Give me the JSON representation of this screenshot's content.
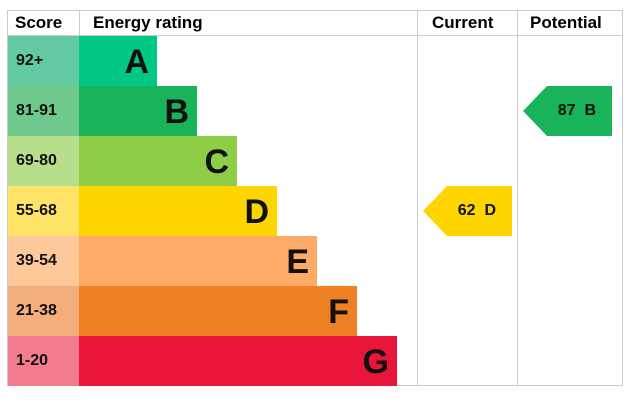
{
  "header": {
    "score": "Score",
    "energy_rating": "Energy rating",
    "current": "Current",
    "potential": "Potential"
  },
  "chart_data": {
    "type": "table",
    "bands": [
      {
        "score": "92+",
        "letter": "A",
        "color": "#00c781",
        "score_color": "#63c9a1"
      },
      {
        "score": "81-91",
        "letter": "B",
        "color": "#19b459",
        "score_color": "#6fc98d"
      },
      {
        "score": "69-80",
        "letter": "C",
        "color": "#8dce46",
        "score_color": "#b6de8b"
      },
      {
        "score": "55-68",
        "letter": "D",
        "color": "#ffd500",
        "score_color": "#ffe469"
      },
      {
        "score": "39-54",
        "letter": "E",
        "color": "#fcaa65",
        "score_color": "#fdc99b"
      },
      {
        "score": "21-38",
        "letter": "F",
        "color": "#ef8023",
        "score_color": "#f4ae7b"
      },
      {
        "score": "1-20",
        "letter": "G",
        "color": "#e9153b",
        "score_color": "#f27b8e"
      }
    ],
    "current": {
      "value": 62,
      "band": "D",
      "label": "62  D",
      "color": "#ffd500"
    },
    "potential": {
      "value": 87,
      "band": "B",
      "label": "87  B",
      "color": "#19b459"
    }
  }
}
